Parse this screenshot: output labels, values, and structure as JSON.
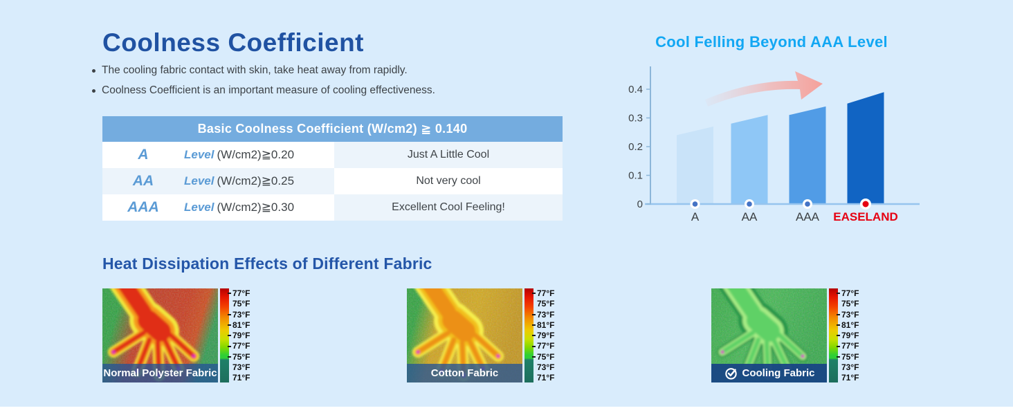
{
  "left": {
    "title": "Coolness Coefficient",
    "bullets": [
      "The cooling fabric contact with skin, take heat away from rapidly.",
      "Coolness Coefficient is an important measure of cooling effectiveness."
    ],
    "table": {
      "header": "Basic Coolness Coefficient (W/cm2) ≧ 0.140",
      "rows": [
        {
          "grade": "A",
          "level_word": "Level",
          "formula": "(W/cm2)≧0.20",
          "desc": "Just A Little Cool"
        },
        {
          "grade": "AA",
          "level_word": "Level",
          "formula": "(W/cm2)≧0.25",
          "desc": "Not very cool"
        },
        {
          "grade": "AAA",
          "level_word": "Level",
          "formula": "(W/cm2)≧0.30",
          "desc": "Excellent Cool Feeling!"
        }
      ]
    }
  },
  "right": {
    "title": "Cool Felling Beyond AAA Level"
  },
  "chart_data": {
    "type": "bar",
    "title": "Cool Felling Beyond AAA Level",
    "categories": [
      "A",
      "AA",
      "AAA",
      "EASELAND"
    ],
    "series": [
      {
        "name": "Coolness Coefficient (W/cm2)",
        "values": [
          [
            0.24,
            0.27
          ],
          [
            0.28,
            0.31
          ],
          [
            0.31,
            0.34
          ],
          [
            0.35,
            0.39
          ]
        ]
      }
    ],
    "bar_shape": "slanted-top (left edge lower, right edge higher)",
    "yticks": [
      0,
      0.1,
      0.2,
      0.3,
      0.4
    ],
    "ylim": [
      0,
      0.45
    ],
    "bar_colors": [
      "#c9e3f9",
      "#8fc7f6",
      "#519ce6",
      "#1164c3"
    ],
    "dot_color": "#4473c5",
    "highlight_category": "EASELAND",
    "highlight_color": "#e60012",
    "annotations": [
      "pink upward curved arrow above bars"
    ],
    "grid": false,
    "legend": false
  },
  "bottom": {
    "title": "Heat Dissipation Effects of Different Fabric",
    "scale_labels": [
      "77°F",
      "75°F",
      "73°F",
      "81°F",
      "79°F",
      "77°F",
      "75°F",
      "73°F",
      "71°F"
    ],
    "cards": [
      {
        "label": "Normal Polyster Fabric",
        "icon": null
      },
      {
        "label": "Cotton Fabric",
        "icon": null
      },
      {
        "label": "Cooling Fabric",
        "icon": "check-circle-icon"
      }
    ]
  },
  "colors": {
    "page_bg": "#d9ecfc",
    "title_blue": "#2052a2",
    "table_header_bg": "#74acdf",
    "table_accent_blue": "#5b9bd5",
    "light_cell": "#ecf4fb",
    "chart_title_cyan": "#12a7f3",
    "highlight_red": "#e60012"
  }
}
